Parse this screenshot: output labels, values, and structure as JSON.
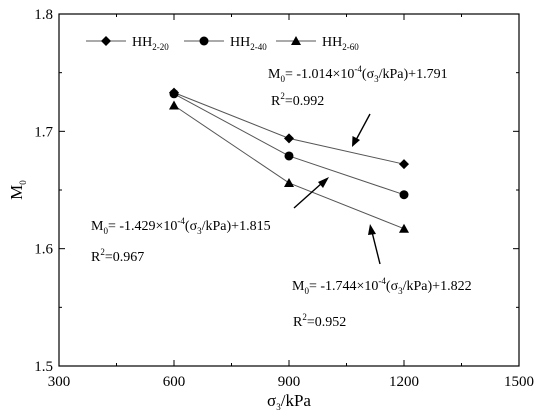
{
  "chart_data": {
    "type": "line",
    "title": "",
    "xlabel": {
      "main": "σ",
      "sub": "3",
      "rest": "/kPa"
    },
    "ylabel": {
      "main": "M",
      "sub": "0"
    },
    "xlim": [
      300,
      1500
    ],
    "ylim": [
      1.5,
      1.8
    ],
    "xticks": [
      300,
      600,
      900,
      1200,
      1500
    ],
    "yticks": [
      1.5,
      1.6,
      1.7,
      1.8
    ],
    "x": [
      600,
      900,
      1200
    ],
    "series": [
      {
        "name_main": "HH",
        "name_sub": "2-20",
        "marker": "diamond",
        "values": [
          1.733,
          1.694,
          1.672
        ]
      },
      {
        "name_main": "HH",
        "name_sub": "2-40",
        "marker": "circle",
        "values": [
          1.732,
          1.679,
          1.646
        ]
      },
      {
        "name_main": "HH",
        "name_sub": "2-60",
        "marker": "triangle",
        "values": [
          1.722,
          1.656,
          1.617
        ]
      }
    ],
    "legend_position": "top-left",
    "grid": false,
    "annotations": [
      {
        "eq_a": "M",
        "eq_a_sub": "0",
        "eq_b": "= -1.014×10",
        "eq_b_sup": "-4",
        "eq_c": "(σ",
        "eq_c_sub": "3",
        "eq_d": "/kPa)+1.791",
        "r2_a": "R",
        "r2_sup": "2",
        "r2_b": "=0.992"
      },
      {
        "eq_a": "M",
        "eq_a_sub": "0",
        "eq_b": "= -1.429×10",
        "eq_b_sup": "-4",
        "eq_c": "(σ",
        "eq_c_sub": "3",
        "eq_d": "/kPa)+1.815",
        "r2_a": "R",
        "r2_sup": "2",
        "r2_b": "=0.967"
      },
      {
        "eq_a": "M",
        "eq_a_sub": "0",
        "eq_b": "= -1.744×10",
        "eq_b_sup": "-4",
        "eq_c": "(σ",
        "eq_c_sub": "3",
        "eq_d": "/kPa)+1.822",
        "r2_a": "R",
        "r2_sup": "2",
        "r2_b": "=0.952"
      }
    ],
    "colors": {
      "line": "#555555",
      "marker": "#000000",
      "axis": "#000000"
    }
  }
}
